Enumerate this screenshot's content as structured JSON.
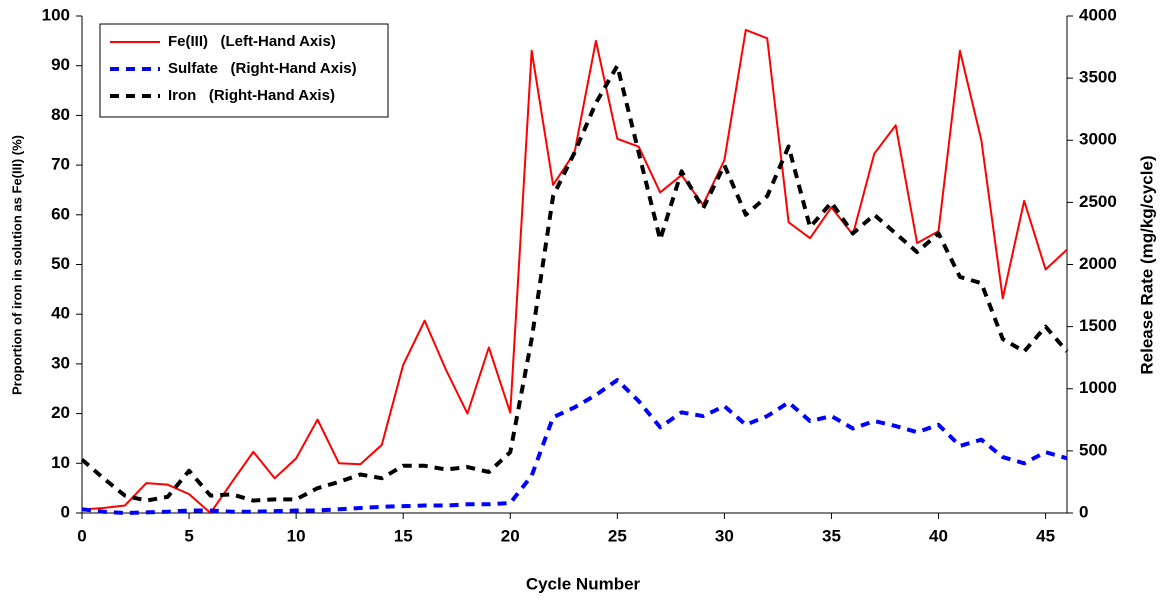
{
  "chart_data": {
    "type": "line",
    "x_label": "Cycle Number",
    "y_label": "Proportion of iron in solution as Fe(III) (%)",
    "y2_label": "Release Rate (mg/kg/cycle)",
    "x": [
      0,
      1,
      2,
      3,
      4,
      5,
      6,
      7,
      8,
      9,
      10,
      11,
      12,
      13,
      14,
      15,
      16,
      17,
      18,
      19,
      20,
      21,
      22,
      23,
      24,
      25,
      26,
      27,
      28,
      29,
      30,
      31,
      32,
      33,
      34,
      35,
      36,
      37,
      38,
      39,
      40,
      41,
      42,
      43,
      44,
      45,
      46
    ],
    "xlim": [
      0,
      46
    ],
    "xticks": [
      0,
      5,
      10,
      15,
      20,
      25,
      30,
      35,
      40,
      45
    ],
    "ylim": [
      0,
      100
    ],
    "yticks": [
      0,
      10,
      20,
      30,
      40,
      50,
      60,
      70,
      80,
      90,
      100
    ],
    "y2lim": [
      0,
      4000
    ],
    "y2ticks": [
      0,
      500,
      1000,
      1500,
      2000,
      2500,
      3000,
      3500,
      4000
    ],
    "legend": "top-left",
    "series": [
      {
        "name": "Fe(III)   (Left-Hand Axis)",
        "color": "#ff0000",
        "line_style": "solid",
        "values": [
          0.7,
          1,
          1.5,
          6,
          5.7,
          3.8,
          0,
          6.2,
          12.3,
          7,
          11,
          18.8,
          10,
          9.8,
          13.7,
          29.8,
          38.7,
          28.8,
          20,
          33.3,
          20.2,
          93,
          66,
          72.5,
          95,
          75.3,
          73.7,
          64.5,
          68,
          62,
          71,
          97.2,
          95.5,
          58.5,
          55.3,
          61.5,
          56,
          72.3,
          78,
          54.3,
          56.7,
          93,
          75,
          43.2,
          62.8,
          49,
          53
        ]
      },
      {
        "name": "Sulfate   (Right-Hand Axis)",
        "color": "#0000ff",
        "line_style": "dashed",
        "axis": "y2",
        "values": [
          30,
          10,
          0,
          5,
          10,
          20,
          20,
          10,
          10,
          15,
          20,
          20,
          30,
          40,
          50,
          55,
          60,
          60,
          70,
          70,
          80,
          300,
          770,
          850,
          950,
          1070,
          900,
          690,
          810,
          780,
          860,
          710,
          780,
          890,
          740,
          780,
          680,
          740,
          700,
          650,
          710,
          540,
          590,
          450,
          400,
          490,
          440
        ]
      },
      {
        "name": "Iron   (Right-Hand Axis)",
        "color": "#000000",
        "line_style": "dashed",
        "axis": "y2",
        "values": [
          430,
          280,
          140,
          100,
          130,
          340,
          140,
          150,
          100,
          110,
          110,
          200,
          250,
          310,
          280,
          380,
          380,
          350,
          370,
          330,
          490,
          1400,
          2550,
          2900,
          3300,
          3600,
          2900,
          2200,
          2750,
          2450,
          2800,
          2400,
          2550,
          2950,
          2300,
          2500,
          2250,
          2400,
          2250,
          2100,
          2250,
          1900,
          1850,
          1400,
          1300,
          1500,
          1300
        ]
      }
    ]
  }
}
